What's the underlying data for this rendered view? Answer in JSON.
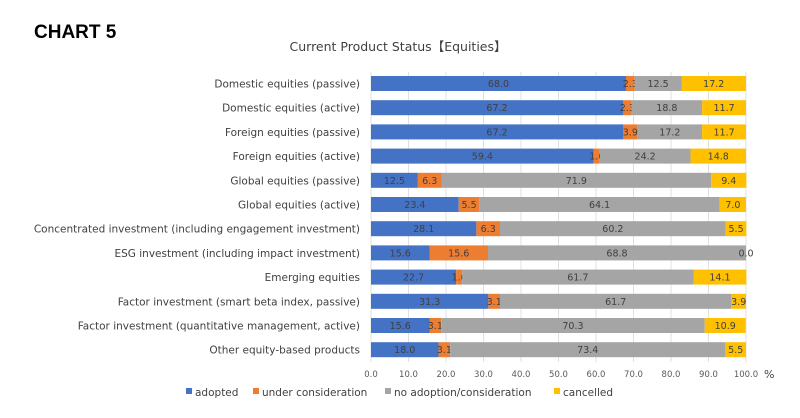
{
  "page": {
    "label": "CHART 5"
  },
  "colors": {
    "adopted": "#4472c4",
    "under_consideration": "#ed7d31",
    "no_adoption": "#a5a5a5",
    "cancelled": "#ffc000",
    "grid": "#d9d9d9"
  },
  "chart_data": {
    "type": "bar",
    "orientation": "horizontal",
    "stacked": "percent",
    "title": "Current Product Status【Equities】",
    "xlabel": "",
    "x_unit": "%",
    "ylabel": "",
    "xlim": [
      0,
      100
    ],
    "x_ticks": [
      "0.0",
      "10.0",
      "20.0",
      "30.0",
      "40.0",
      "50.0",
      "60.0",
      "70.0",
      "80.0",
      "90.0",
      "100.0"
    ],
    "grid": true,
    "legend_position": "bottom",
    "categories": [
      "Domestic equities (passive)",
      "Domestic equities (active)",
      "Foreign equities (passive)",
      "Foreign equities (active)",
      "Global equities (passive)",
      "Global equities (active)",
      "Concentrated investment (including engagement investment)",
      "ESG investment (including impact investment)",
      "Emerging equities",
      "Factor investment (smart beta index, passive)",
      "Factor investment (quantitative management, active)",
      "Other equity-based products"
    ],
    "series": [
      {
        "name": "adopted",
        "values": [
          68.0,
          67.2,
          67.2,
          59.4,
          12.5,
          23.4,
          28.1,
          15.6,
          22.7,
          31.3,
          15.6,
          18.0
        ]
      },
      {
        "name": "under consideration",
        "values": [
          2.3,
          2.3,
          3.9,
          1.6,
          6.3,
          5.5,
          6.3,
          15.6,
          1.6,
          3.1,
          3.1,
          3.1
        ]
      },
      {
        "name": "no adoption/consideration",
        "values": [
          12.5,
          18.8,
          17.2,
          24.2,
          71.9,
          64.1,
          60.2,
          68.8,
          61.7,
          61.7,
          70.3,
          73.4
        ]
      },
      {
        "name": "cancelled",
        "values": [
          17.2,
          11.7,
          11.7,
          14.8,
          9.4,
          7.0,
          5.5,
          0.0,
          14.1,
          3.9,
          10.9,
          5.5
        ]
      }
    ]
  }
}
